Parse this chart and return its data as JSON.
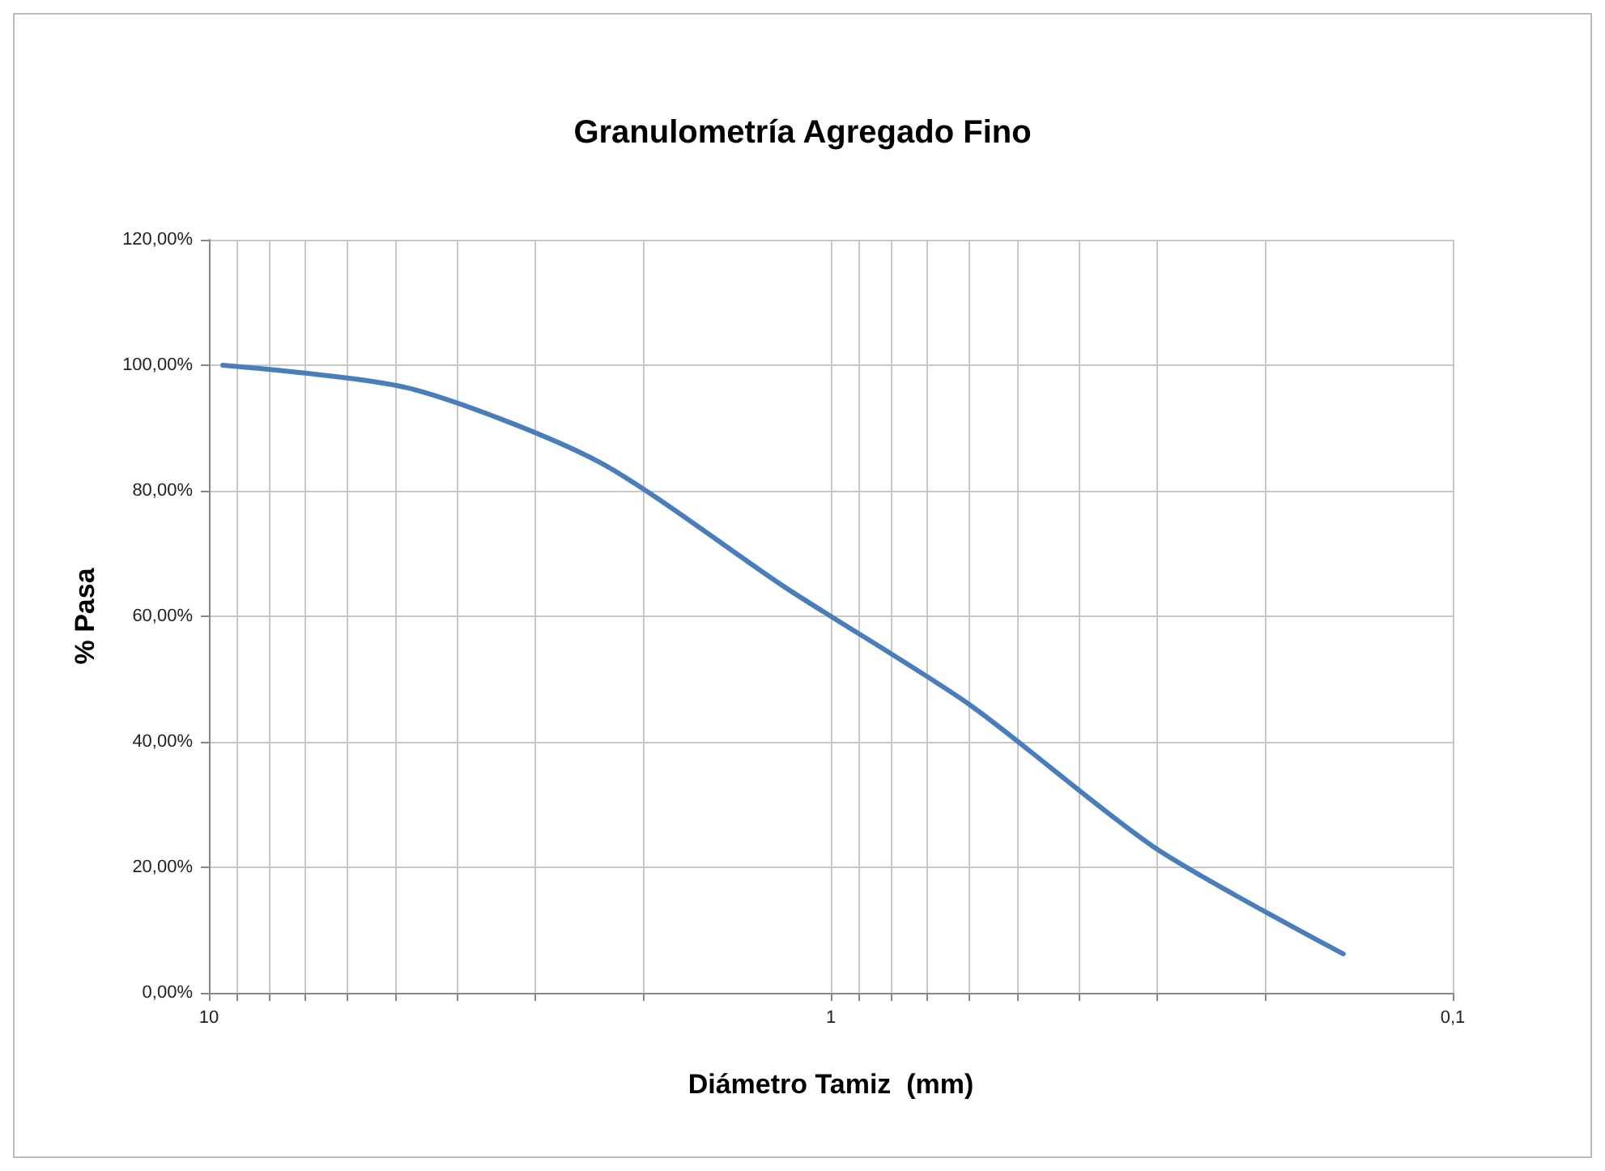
{
  "chart_data": {
    "type": "line",
    "title": "Granulometría Agregado Fino",
    "xlabel": "Diámetro Tamiz  (mm)",
    "ylabel": "% Pasa",
    "x": [
      9.5,
      4.75,
      2.36,
      1.18,
      0.6,
      0.3,
      0.15
    ],
    "series": [
      {
        "color": "#4a7ebb",
        "values": [
          100,
          96.3,
          84.6,
          64.5,
          46,
          23,
          6.2
        ]
      }
    ],
    "log": "x",
    "xlim": [
      10,
      0.1
    ],
    "xticks": [
      {
        "value": 10,
        "label": "10"
      },
      {
        "value": 9,
        "label": null
      },
      {
        "value": 8,
        "label": null
      },
      {
        "value": 7,
        "label": null
      },
      {
        "value": 6,
        "label": null
      },
      {
        "value": 5,
        "label": null
      },
      {
        "value": 4,
        "label": null
      },
      {
        "value": 3,
        "label": null
      },
      {
        "value": 2,
        "label": null
      },
      {
        "value": 1,
        "label": "1"
      },
      {
        "value": 0.9,
        "label": null
      },
      {
        "value": 0.8,
        "label": null
      },
      {
        "value": 0.7,
        "label": null
      },
      {
        "value": 0.6,
        "label": null
      },
      {
        "value": 0.5,
        "label": null
      },
      {
        "value": 0.4,
        "label": null
      },
      {
        "value": 0.3,
        "label": null
      },
      {
        "value": 0.2,
        "label": null
      },
      {
        "value": 0.1,
        "label": "0,1"
      }
    ],
    "ylim": [
      0,
      120
    ],
    "yticks": [
      {
        "value": 0,
        "label": "0,00%"
      },
      {
        "value": 20,
        "label": "20,00%"
      },
      {
        "value": 40,
        "label": "40,00%"
      },
      {
        "value": 60,
        "label": "60,00%"
      },
      {
        "value": 80,
        "label": "80,00%"
      },
      {
        "value": 100,
        "label": "100,00%"
      },
      {
        "value": 120,
        "label": "120,00%"
      }
    ],
    "grid": true,
    "marker": "none",
    "line_style": "solid"
  }
}
